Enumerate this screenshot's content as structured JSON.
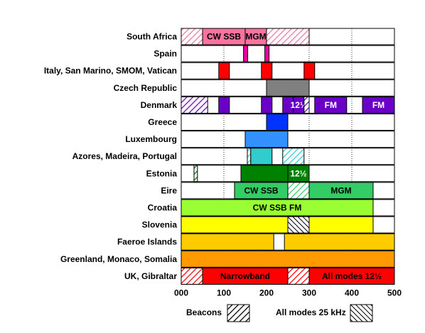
{
  "chart_data": {
    "type": "bar",
    "orientation": "horizontal",
    "xlim": [
      0,
      500
    ],
    "x_ticks": [
      "000",
      "100",
      "200",
      "300",
      "400",
      "500"
    ],
    "grid": "vertical dotted at 100, 200, 300, 400",
    "colors": {
      "pink": "#f8749e",
      "magenta": "#e800a0",
      "red": "#ff0000",
      "grey": "#808080",
      "violet": "#6a00c8",
      "blue": "#0033ff",
      "skyblue": "#3391ff",
      "cyan": "#33cccc",
      "darkgreen": "#008000",
      "green": "#33cc66",
      "lime": "#99ff33",
      "yellow": "#ffff00",
      "amber": "#ffcc00",
      "orange": "#ff9900"
    },
    "rows": [
      {
        "country": "South Africa",
        "segments": [
          {
            "start": 0,
            "end": 50,
            "color": "pink",
            "pattern": "hatch"
          },
          {
            "start": 50,
            "end": 150,
            "color": "pink",
            "label": "CW SSB"
          },
          {
            "start": 150,
            "end": 200,
            "color": "pink",
            "label": "MGM"
          },
          {
            "start": 200,
            "end": 300,
            "color": "pink",
            "pattern": "hatch"
          }
        ]
      },
      {
        "country": "Spain",
        "segments": [
          {
            "start": 146,
            "end": 156,
            "color": "magenta"
          },
          {
            "start": 196,
            "end": 206,
            "color": "magenta"
          }
        ]
      },
      {
        "country": "Italy, San Marino, SMOM, Vatican",
        "segments": [
          {
            "start": 88,
            "end": 113,
            "color": "red"
          },
          {
            "start": 188,
            "end": 213,
            "color": "red"
          },
          {
            "start": 288,
            "end": 313,
            "color": "red"
          }
        ]
      },
      {
        "country": "Czech Republic",
        "segments": [
          {
            "start": 200,
            "end": 300,
            "color": "grey"
          }
        ]
      },
      {
        "country": "Denmark",
        "segments": [
          {
            "start": 0,
            "end": 62,
            "color": "violet",
            "pattern": "hatch"
          },
          {
            "start": 88,
            "end": 113,
            "color": "violet"
          },
          {
            "start": 188,
            "end": 213,
            "color": "violet"
          },
          {
            "start": 238,
            "end": 263,
            "color": "violet"
          },
          {
            "start": 263,
            "end": 288,
            "color": "violet",
            "label": "12½"
          },
          {
            "start": 288,
            "end": 300,
            "color": "violet",
            "pattern": "hatch"
          },
          {
            "start": 313,
            "end": 388,
            "color": "violet",
            "label": "FM"
          },
          {
            "start": 425,
            "end": 500,
            "color": "violet",
            "label": "FM"
          }
        ]
      },
      {
        "country": "Greece",
        "segments": [
          {
            "start": 200,
            "end": 250,
            "color": "blue"
          }
        ]
      },
      {
        "country": "Luxembourg",
        "segments": [
          {
            "start": 150,
            "end": 250,
            "color": "skyblue"
          }
        ]
      },
      {
        "country": "Azores, Madeira, Portugal",
        "segments": [
          {
            "start": 155,
            "end": 163,
            "color": "cyan",
            "pattern": "hatch"
          },
          {
            "start": 163,
            "end": 213,
            "color": "cyan"
          },
          {
            "start": 238,
            "end": 288,
            "color": "cyan",
            "pattern": "hatch"
          }
        ]
      },
      {
        "country": "Estonia",
        "segments": [
          {
            "start": 30,
            "end": 38,
            "color": "darkgreen",
            "pattern": "hatch"
          },
          {
            "start": 140,
            "end": 250,
            "color": "darkgreen"
          },
          {
            "start": 250,
            "end": 300,
            "color": "darkgreen",
            "label": "12½"
          }
        ]
      },
      {
        "country": "Eire",
        "segments": [
          {
            "start": 125,
            "end": 250,
            "color": "green",
            "label": "CW SSB"
          },
          {
            "start": 250,
            "end": 300,
            "color": "green",
            "pattern": "hatch"
          },
          {
            "start": 300,
            "end": 450,
            "color": "green",
            "label": "MGM"
          }
        ]
      },
      {
        "country": "Croatia",
        "segments": [
          {
            "start": 0,
            "end": 450,
            "color": "lime",
            "label": "CW SSB FM"
          }
        ]
      },
      {
        "country": "Slovenia",
        "segments": [
          {
            "start": 0,
            "end": 250,
            "color": "yellow"
          },
          {
            "start": 250,
            "end": 300,
            "color": "yellow",
            "pattern": "crosshatch"
          },
          {
            "start": 300,
            "end": 450,
            "color": "yellow"
          }
        ]
      },
      {
        "country": "Faeroe Islands",
        "segments": [
          {
            "start": 0,
            "end": 217,
            "color": "amber"
          },
          {
            "start": 242,
            "end": 500,
            "color": "amber"
          }
        ]
      },
      {
        "country": "Greenland, Monaco, Somalia",
        "segments": [
          {
            "start": 0,
            "end": 500,
            "color": "orange"
          }
        ]
      },
      {
        "country": "UK, Gibraltar",
        "segments": [
          {
            "start": 0,
            "end": 50,
            "color": "red",
            "pattern": "hatch"
          },
          {
            "start": 50,
            "end": 250,
            "color": "red",
            "label": "Narrowband"
          },
          {
            "start": 250,
            "end": 300,
            "color": "red",
            "pattern": "hatch"
          },
          {
            "start": 300,
            "end": 500,
            "color": "red",
            "label": "All modes 12½"
          }
        ]
      }
    ],
    "legend": {
      "placement": "bottom",
      "items": [
        {
          "label": "Beacons",
          "pattern": "hatch"
        },
        {
          "label": "All modes 25 kHz",
          "pattern": "crosshatch"
        }
      ]
    }
  }
}
